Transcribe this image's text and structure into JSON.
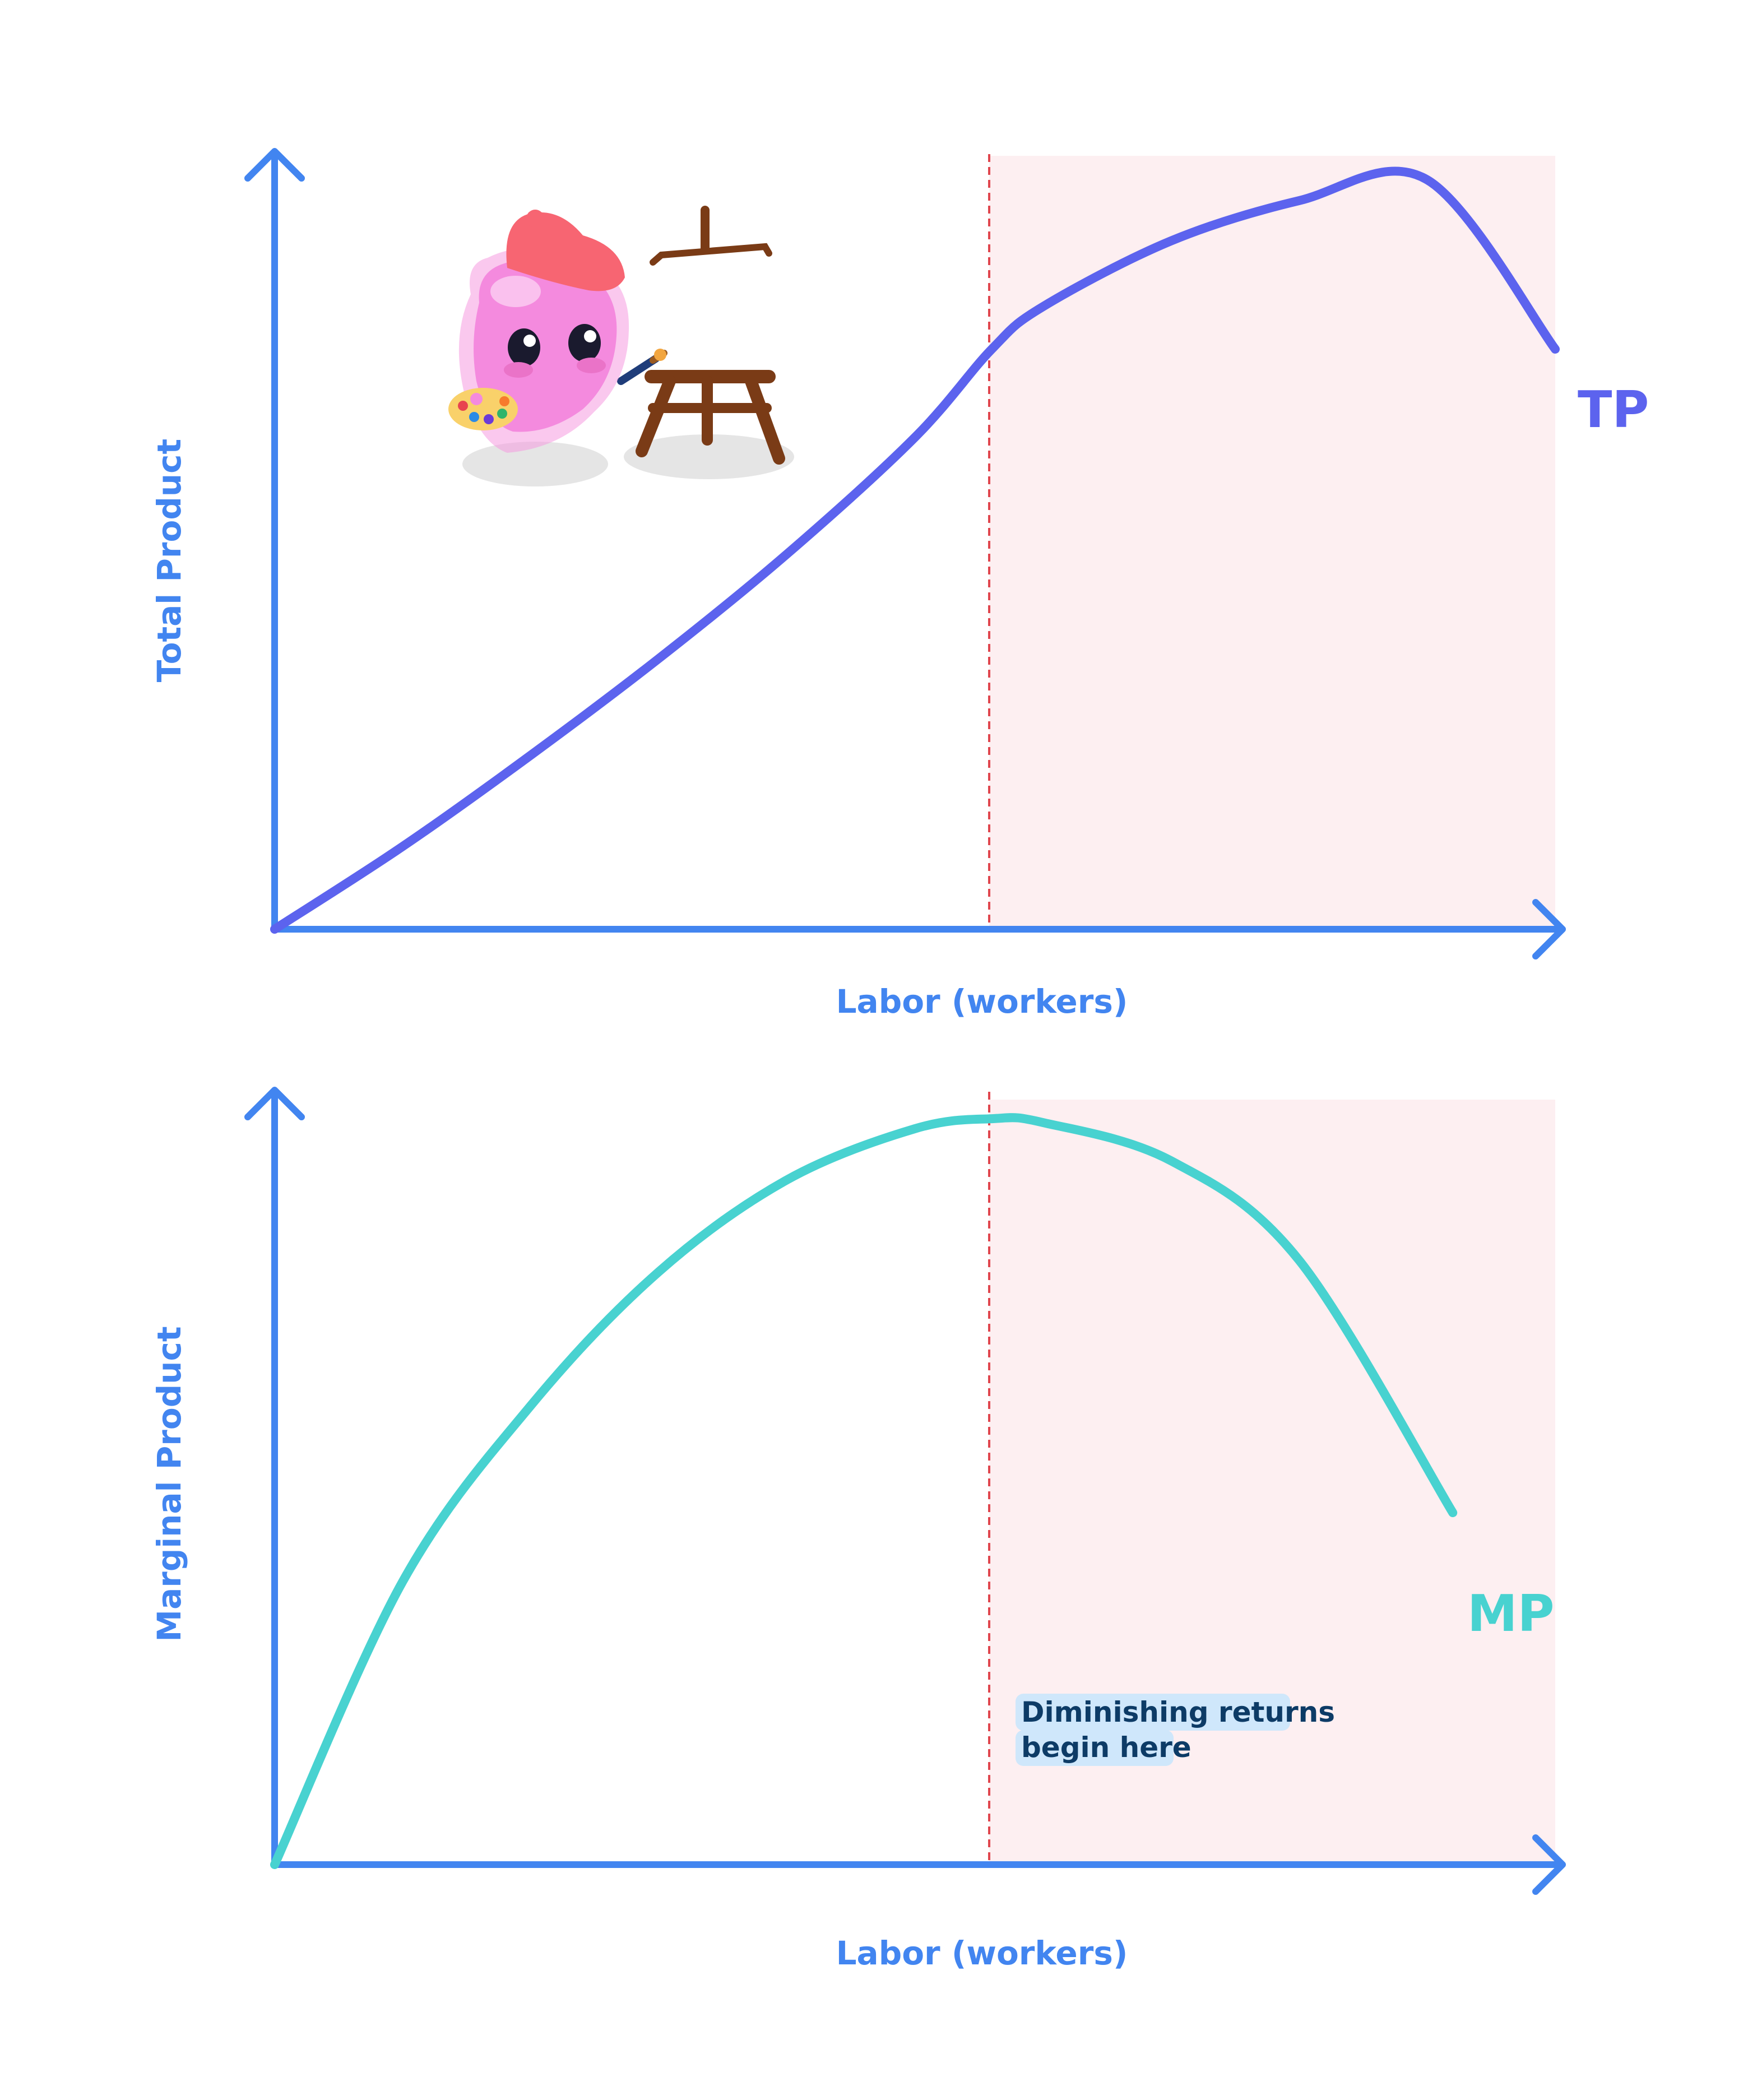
{
  "colors": {
    "axis": "#4285f0",
    "tp_curve": "#5c63ee",
    "mp_curve": "#48d2d0",
    "shade": "#fdeff1",
    "divider": "#e0464e",
    "annotation_bg": "#cfe7fb"
  },
  "mascot": {
    "icon": "pink-blob-painter-with-easel"
  },
  "chart_data": [
    {
      "type": "line",
      "xlabel": "Labor (workers)",
      "ylabel": "Total Product",
      "xlim": [
        0,
        10
      ],
      "ylim": [
        0,
        10
      ],
      "inflection_x": 5.6,
      "series": [
        {
          "name": "TP",
          "color": "#5c63ee",
          "x": [
            0,
            1,
            2,
            3,
            4,
            5,
            5.6,
            6,
            7,
            8,
            9,
            10
          ],
          "y": [
            0,
            1.07,
            2.25,
            3.5,
            4.85,
            6.36,
            7.5,
            8.05,
            8.9,
            9.42,
            9.69,
            7.5
          ]
        }
      ]
    },
    {
      "type": "line",
      "xlabel": "Labor (workers)",
      "ylabel": "Marginal Product",
      "xlim": [
        0,
        10
      ],
      "ylim": [
        0,
        10
      ],
      "inflection_x": 5.6,
      "annotation": {
        "line1": "Diminishing returns",
        "line2": "begin here"
      },
      "series": [
        {
          "name": "MP",
          "color": "#48d2d0",
          "x": [
            0,
            1,
            2,
            3,
            4,
            5,
            5.6,
            6,
            7,
            8,
            9.2
          ],
          "y": [
            0,
            3.7,
            6.0,
            7.75,
            8.95,
            9.62,
            9.75,
            9.7,
            9.2,
            7.9,
            4.6
          ]
        }
      ]
    }
  ]
}
